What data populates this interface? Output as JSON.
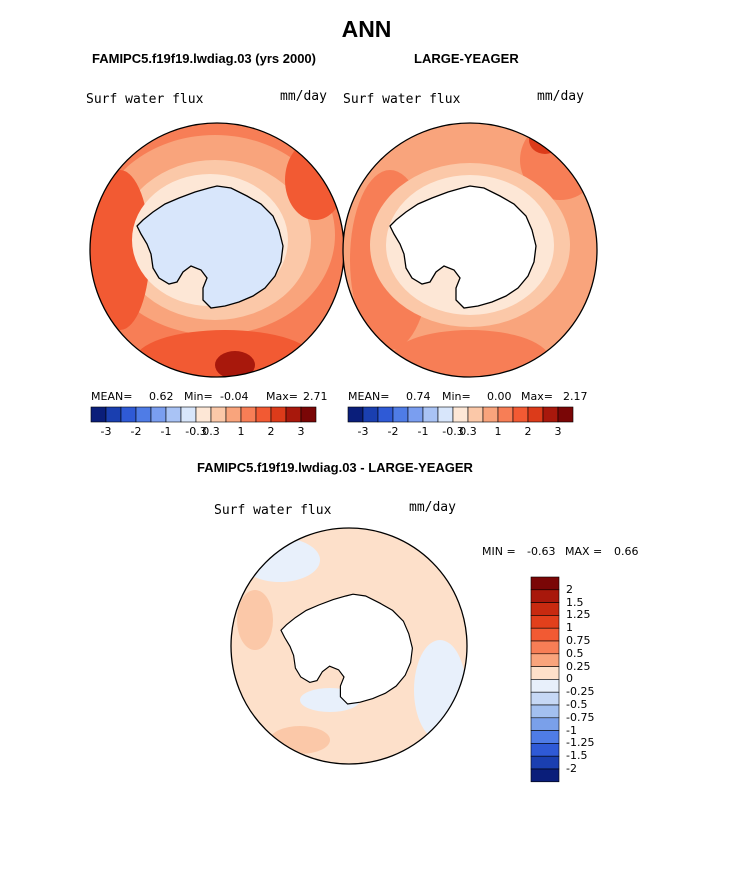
{
  "title": "ANN",
  "panel_left": {
    "case_label": "FAMIPC5.f19f19.lwdiag.03 (yrs 2000)",
    "variable": "Surf water flux",
    "units": "mm/day",
    "stats": {
      "mean_label": "MEAN=",
      "mean": "0.62",
      "min_label": "Min=",
      "min": "-0.04",
      "max_label": "Max=",
      "max": "2.71"
    }
  },
  "panel_right": {
    "case_label": "LARGE-YEAGER",
    "variable": "Surf water flux",
    "units": "mm/day",
    "stats": {
      "mean_label": "MEAN=",
      "mean": "0.74",
      "min_label": "Min=",
      "min": "0.00",
      "max_label": "Max=",
      "max": "2.17"
    }
  },
  "panel_diff": {
    "case_label": "FAMIPC5.f19f19.lwdiag.03 - LARGE-YEAGER",
    "variable": "Surf water flux",
    "units": "mm/day",
    "stats": {
      "min_label": "MIN =",
      "min": "-0.63",
      "max_label": "MAX =",
      "max": "0.66"
    }
  },
  "colorbar_top": {
    "colors": [
      "#0a1e7a",
      "#1a3fb0",
      "#2f5ad6",
      "#4f7ce6",
      "#7a9ef0",
      "#a9c3f5",
      "#d8e6fb",
      "#fde7d6",
      "#fbc8a8",
      "#f9a47c",
      "#f77e56",
      "#f25a33",
      "#dc3b1a",
      "#a8180c",
      "#7a0606"
    ],
    "tick_labels": [
      "-3",
      "-2",
      "-1",
      "-0.3",
      "0.3",
      "1",
      "2",
      "3"
    ]
  },
  "colorbar_diff": {
    "colors": [
      "#7a0606",
      "#a8180c",
      "#c82a10",
      "#e2401c",
      "#f25a33",
      "#f77e56",
      "#f9a47c",
      "#fde0ca",
      "#e8f0fb",
      "#c6d8f5",
      "#a3c0f0",
      "#7aa0ea",
      "#4f7ce6",
      "#2f5ad6",
      "#1a3fb0",
      "#0a1e7a"
    ],
    "tick_labels": [
      "2",
      "1.5",
      "1.25",
      "1",
      "0.75",
      "0.5",
      "0.25",
      "0",
      "-0.25",
      "-0.5",
      "-0.75",
      "-1",
      "-1.25",
      "-1.5",
      "-2"
    ]
  }
}
